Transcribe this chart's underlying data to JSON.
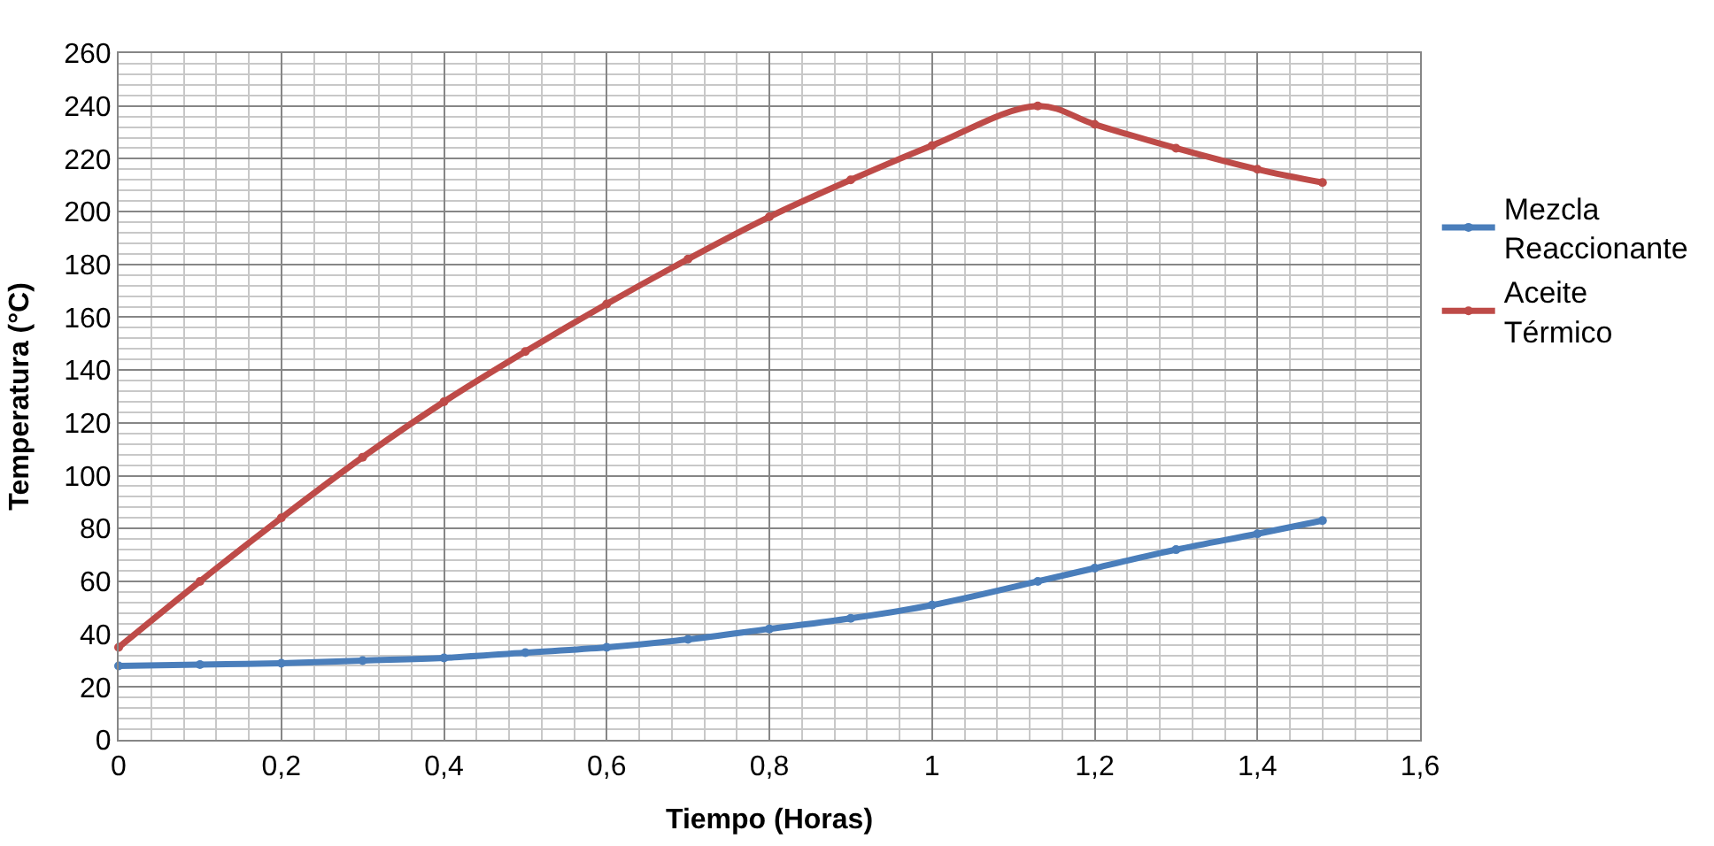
{
  "chart_data": {
    "type": "line",
    "xlabel": "Tiempo (Horas)",
    "ylabel": "Temperatura (°C)",
    "xlim": [
      0,
      1.6
    ],
    "xticks": [
      {
        "value": 0,
        "label": "0"
      },
      {
        "value": 0.2,
        "label": "0,2"
      },
      {
        "value": 0.4,
        "label": "0,4"
      },
      {
        "value": 0.6,
        "label": "0,6"
      },
      {
        "value": 0.8,
        "label": "0,8"
      },
      {
        "value": 1,
        "label": "1"
      },
      {
        "value": 1.2,
        "label": "1,2"
      },
      {
        "value": 1.4,
        "label": "1,4"
      },
      {
        "value": 1.6,
        "label": "1,6"
      }
    ],
    "ylim": [
      0,
      260
    ],
    "yticks": [
      0,
      20,
      40,
      60,
      80,
      100,
      120,
      140,
      160,
      180,
      200,
      220,
      240,
      260
    ],
    "grid": true,
    "legend": "right",
    "marker": "circle",
    "line_style": "solid",
    "x": [
      0,
      0.1,
      0.2,
      0.3,
      0.4,
      0.5,
      0.6,
      0.7,
      0.8,
      0.9,
      1.0,
      1.13,
      1.2,
      1.3,
      1.4,
      1.48
    ],
    "series": [
      {
        "name": "Mezcla Reaccionante",
        "color": "#4a7ebb",
        "values": [
          28,
          28.5,
          29,
          30,
          31,
          33,
          35,
          38,
          42,
          46,
          51,
          60,
          65,
          72,
          78,
          83
        ]
      },
      {
        "name": "Aceite Térmico",
        "color": "#be4b48",
        "values": [
          35,
          60,
          84,
          107,
          128,
          147,
          165,
          182,
          198,
          212,
          225,
          240,
          233,
          224,
          216,
          211
        ]
      }
    ]
  }
}
